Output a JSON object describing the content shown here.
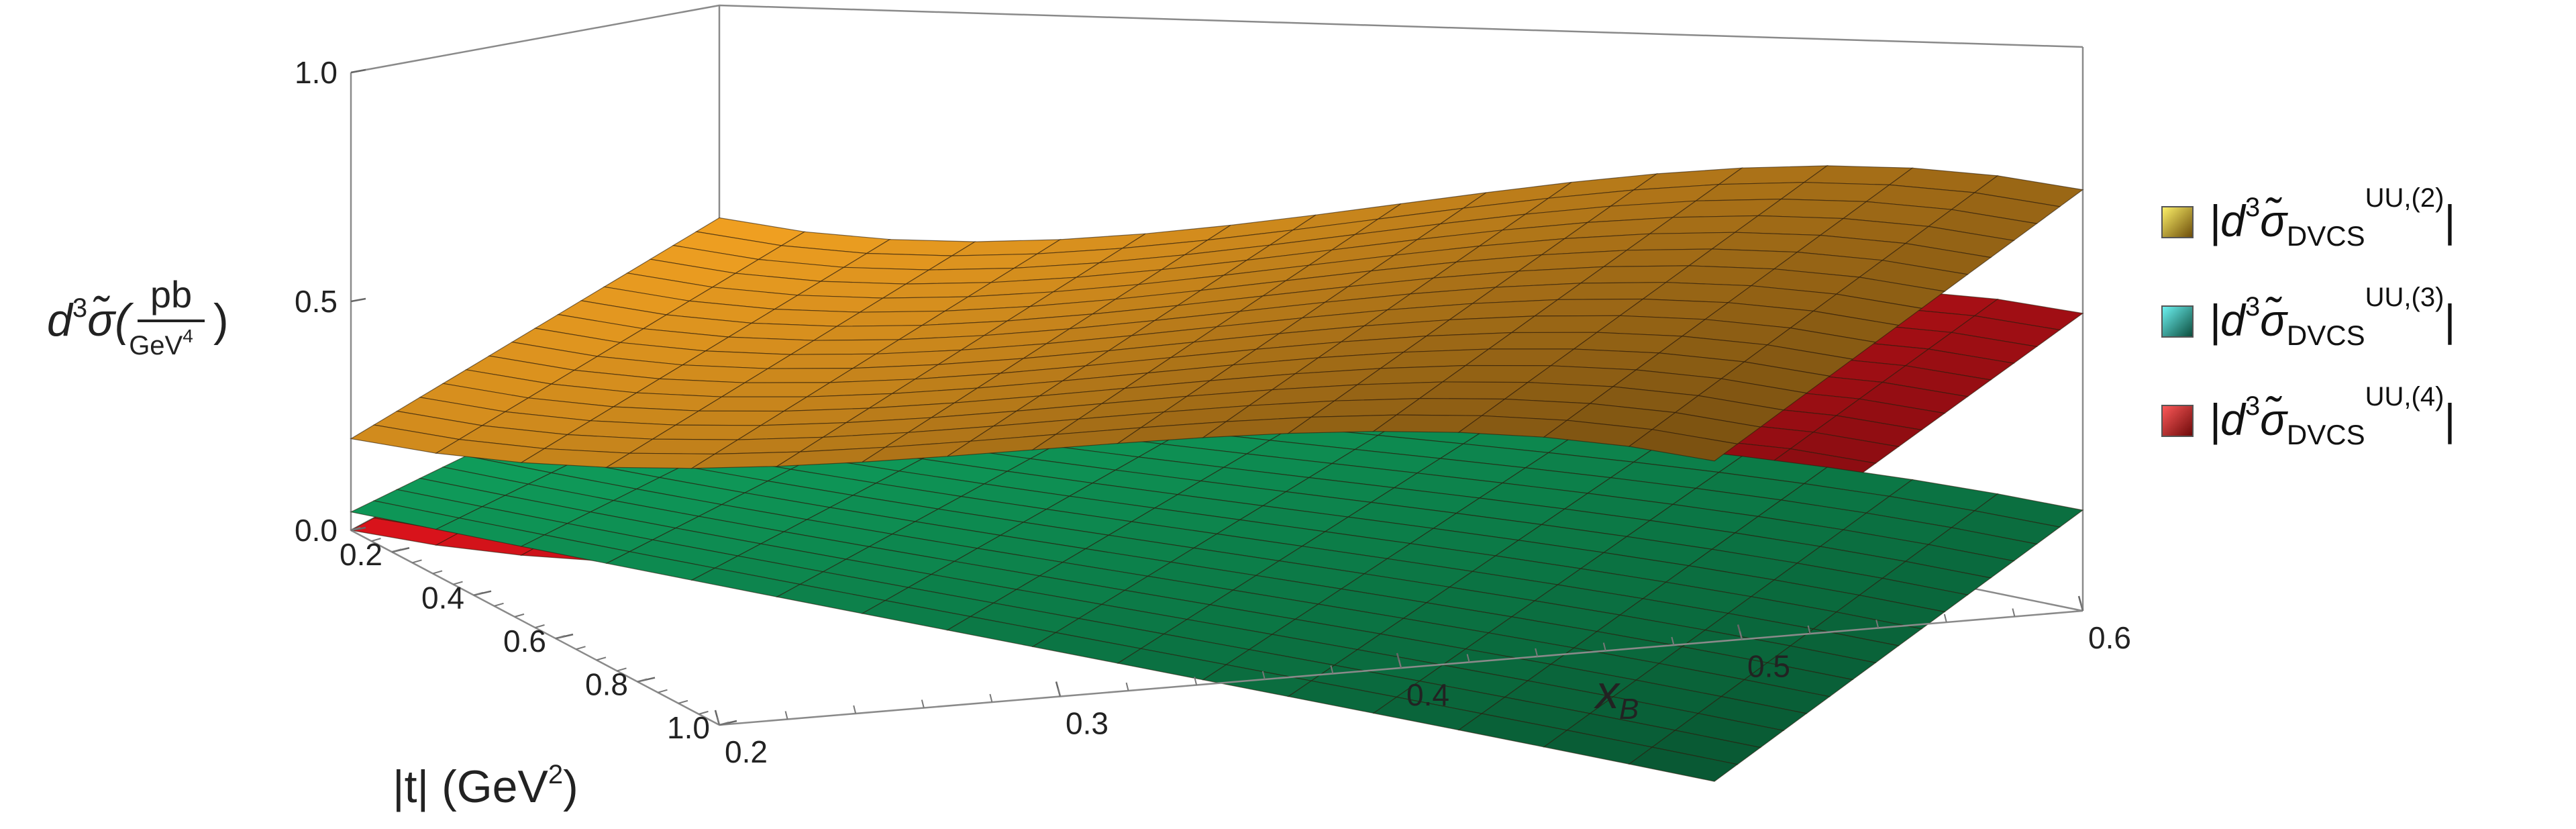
{
  "chart_data": {
    "type": "surface3d",
    "x_axis": {
      "label_main": "x",
      "label_sub": "B",
      "range": [
        0.2,
        0.6
      ],
      "ticks": [
        "0.2",
        "0.3",
        "0.4",
        "0.5",
        "0.6"
      ]
    },
    "t_axis": {
      "label_main": "|t| (GeV",
      "label_sup": "2",
      "label_end": ")",
      "range": [
        0.1,
        1.0
      ],
      "ticks": [
        "0.2",
        "0.4",
        "0.6",
        "0.8",
        "1.0"
      ]
    },
    "z_axis": {
      "label_prefix": "d",
      "label_sup": "3",
      "label_sigma": "σ̃(",
      "frac_num": "pb",
      "frac_den_main": "GeV",
      "frac_den_sup": "4",
      "label_close": ")",
      "range": [
        0.0,
        1.0
      ],
      "ticks": [
        "0.0",
        "0.5",
        "1.0"
      ]
    },
    "grid": false,
    "legend_position": "right",
    "series": [
      {
        "name": "|d3σ̃DVCS UU,(2)|",
        "label_parts": {
          "pre": "|d",
          "sup1": "3",
          "sigma": "σ̃",
          "sub": "DVCS",
          "sup2": "UU,(2)",
          "post": "|"
        },
        "legend_color": "#f2c21a",
        "surface_color": "#d8901e",
        "corners": {
          "x0.2_t0.1": 0.25,
          "x0.2_t1.0": 0.2,
          "x0.6_t0.1": 0.92,
          "x0.6_t1.0": 0.76
        }
      },
      {
        "name": "|d3σ̃DVCS UU,(3)|",
        "label_parts": {
          "pre": "|d",
          "sup1": "3",
          "sigma": "σ̃",
          "sub": "DVCS",
          "sup2": "UU,(3)",
          "post": "|"
        },
        "legend_color": "#22c8c8",
        "surface_color": "#0f9b5a",
        "corners": {
          "x0.2_t0.1": 0.0,
          "x0.2_t1.0": 0.04,
          "x0.6_t0.1": 0.22,
          "x0.6_t1.0": 0.06
        }
      },
      {
        "name": "|d3σ̃DVCS UU,(4)|",
        "label_parts": {
          "pre": "|d",
          "sup1": "3",
          "sigma": "σ̃",
          "sub": "DVCS",
          "sup2": "UU,(4)",
          "post": "|"
        },
        "legend_color": "#e81a1a",
        "surface_color": "#e0141c",
        "corners": {
          "x0.2_t0.1": 0.0,
          "x0.2_t1.0": 0.0,
          "x0.6_t0.1": 0.65,
          "x0.6_t1.0": 0.5
        }
      }
    ]
  }
}
